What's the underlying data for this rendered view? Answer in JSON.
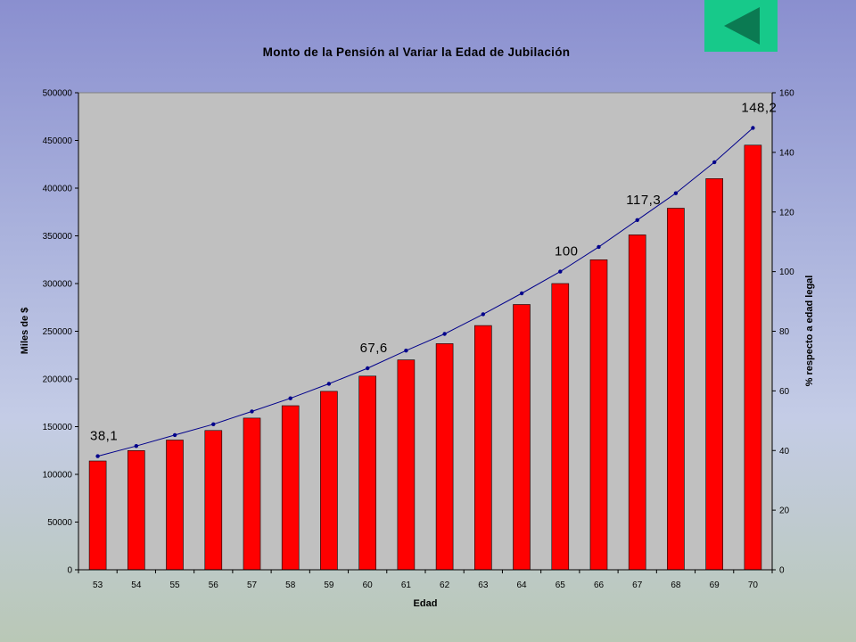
{
  "navigation": {
    "back_button_icon": "triangle-left-icon",
    "back_button_color": "#17c98a",
    "icon_color": "#0b7a52"
  },
  "chart_data": {
    "type": "bar",
    "title": "Monto de la Pensión al Variar la Edad de Jubilación",
    "xlabel": "Edad",
    "ylabel": "Miles de $",
    "y2label": "% respecto a edad legal",
    "categories": [
      "53",
      "54",
      "55",
      "56",
      "57",
      "58",
      "59",
      "60",
      "61",
      "62",
      "63",
      "64",
      "65",
      "66",
      "67",
      "68",
      "69",
      "70"
    ],
    "ylim": [
      0,
      500000
    ],
    "y_ticks": [
      "0",
      "50000",
      "100000",
      "150000",
      "200000",
      "250000",
      "300000",
      "350000",
      "400000",
      "450000",
      "500000"
    ],
    "y2lim": [
      0,
      160
    ],
    "y2_ticks": [
      "0",
      "20",
      "40",
      "60",
      "80",
      "100",
      "120",
      "140",
      "160"
    ],
    "grid": false,
    "plot_background": "#c0c0c0",
    "series": [
      {
        "type": "bar",
        "axis": "left",
        "color": "#ff0000",
        "values": [
          114000,
          125000,
          136000,
          146000,
          159000,
          172000,
          187000,
          203000,
          220000,
          237000,
          256000,
          278000,
          300000,
          325000,
          351000,
          379000,
          410000,
          445000
        ]
      },
      {
        "type": "line",
        "axis": "right",
        "color": "#00008b",
        "values": [
          38.1,
          41.5,
          45.2,
          48.8,
          53.1,
          57.5,
          62.4,
          67.6,
          73.5,
          79.1,
          85.7,
          92.7,
          100,
          108.3,
          117.3,
          126.3,
          136.7,
          148.2
        ]
      }
    ],
    "annotations": [
      {
        "category": "53",
        "text": "38,1"
      },
      {
        "category": "60",
        "text": "67,6"
      },
      {
        "category": "65",
        "text": "100"
      },
      {
        "category": "67",
        "text": "117,3"
      },
      {
        "category": "70",
        "text": "148,2"
      }
    ]
  }
}
